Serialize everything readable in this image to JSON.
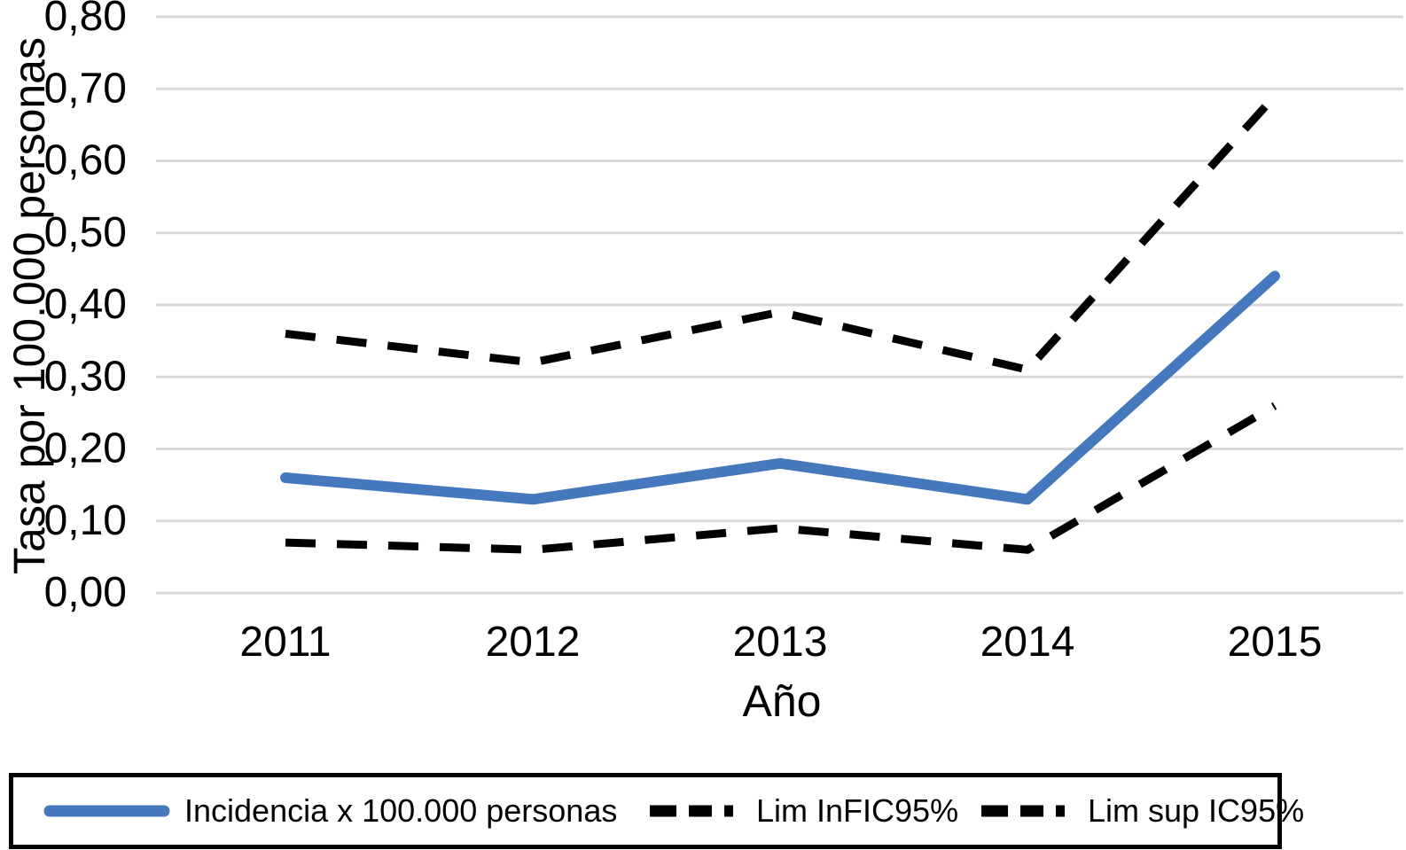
{
  "chart_data": {
    "type": "line",
    "title": "",
    "xlabel": "Año",
    "ylabel": "Tasa por 100.000 personas",
    "x_categories": [
      "2011",
      "2012",
      "2013",
      "2014",
      "2015"
    ],
    "y_tick_labels": [
      "0,00",
      "0,10",
      "0,20",
      "0,30",
      "0,40",
      "0,50",
      "0,60",
      "0,70",
      "0,80"
    ],
    "ylim": [
      0,
      0.8
    ],
    "y_step": 0.1,
    "grid": "horizontal-only",
    "gridline_color": "#d9d9d9",
    "legend_position": "bottom-box",
    "series": [
      {
        "name": "Incidencia x 100.000 personas",
        "values": [
          0.16,
          0.13,
          0.18,
          0.13,
          0.44
        ],
        "color": "#4678bd",
        "style": "solid"
      },
      {
        "name": "Lim InFIC95%",
        "values": [
          0.07,
          0.06,
          0.09,
          0.06,
          0.26
        ],
        "color": "#000000",
        "style": "dashed"
      },
      {
        "name": "Lim sup IC95%",
        "values": [
          0.36,
          0.32,
          0.39,
          0.31,
          0.69
        ],
        "color": "#000000",
        "style": "dashed"
      }
    ]
  }
}
